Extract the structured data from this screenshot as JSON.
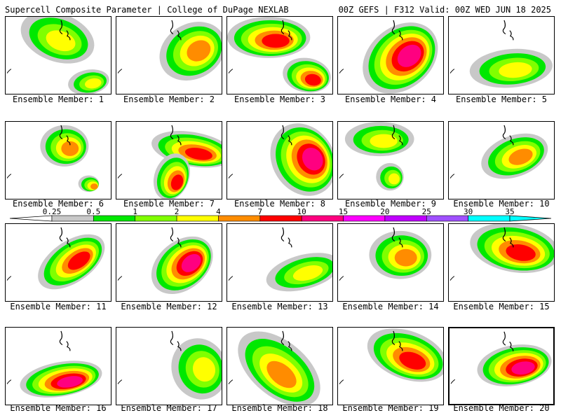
{
  "header": {
    "title_left": "Supercell Composite Parameter | College of DuPage NEXLAB",
    "title_right": "00Z GEFS | F312 Valid: 00Z WED JUN 18 2025"
  },
  "colorbar": {
    "ticks": [
      "0.25",
      "0.5",
      "1",
      "2",
      "4",
      "7",
      "10",
      "15",
      "20",
      "25",
      "30",
      "35"
    ],
    "colors": [
      "#ffffff",
      "#c8c8c8",
      "#00e800",
      "#80ff00",
      "#ffff00",
      "#ff8c00",
      "#ff0000",
      "#ff0080",
      "#ff00ff",
      "#c000ff",
      "#a050ff",
      "#00ffff"
    ]
  },
  "members": [
    {
      "label": "Ensemble Member: 1"
    },
    {
      "label": "Ensemble Member: 2"
    },
    {
      "label": "Ensemble Member: 3"
    },
    {
      "label": "Ensemble Member: 4"
    },
    {
      "label": "Ensemble Member: 5"
    },
    {
      "label": "Ensemble Member: 6"
    },
    {
      "label": "Ensemble Member: 7"
    },
    {
      "label": "Ensemble Member: 8"
    },
    {
      "label": "Ensemble Member: 9"
    },
    {
      "label": "Ensemble Member: 10"
    },
    {
      "label": "Ensemble Member: 11"
    },
    {
      "label": "Ensemble Member: 12"
    },
    {
      "label": "Ensemble Member: 13"
    },
    {
      "label": "Ensemble Member: 14"
    },
    {
      "label": "Ensemble Member: 15"
    },
    {
      "label": "Ensemble Member: 16"
    },
    {
      "label": "Ensemble Member: 17"
    },
    {
      "label": "Ensemble Member: 18"
    },
    {
      "label": "Ensemble Member: 19"
    },
    {
      "label": "Ensemble Member: 20"
    }
  ]
}
